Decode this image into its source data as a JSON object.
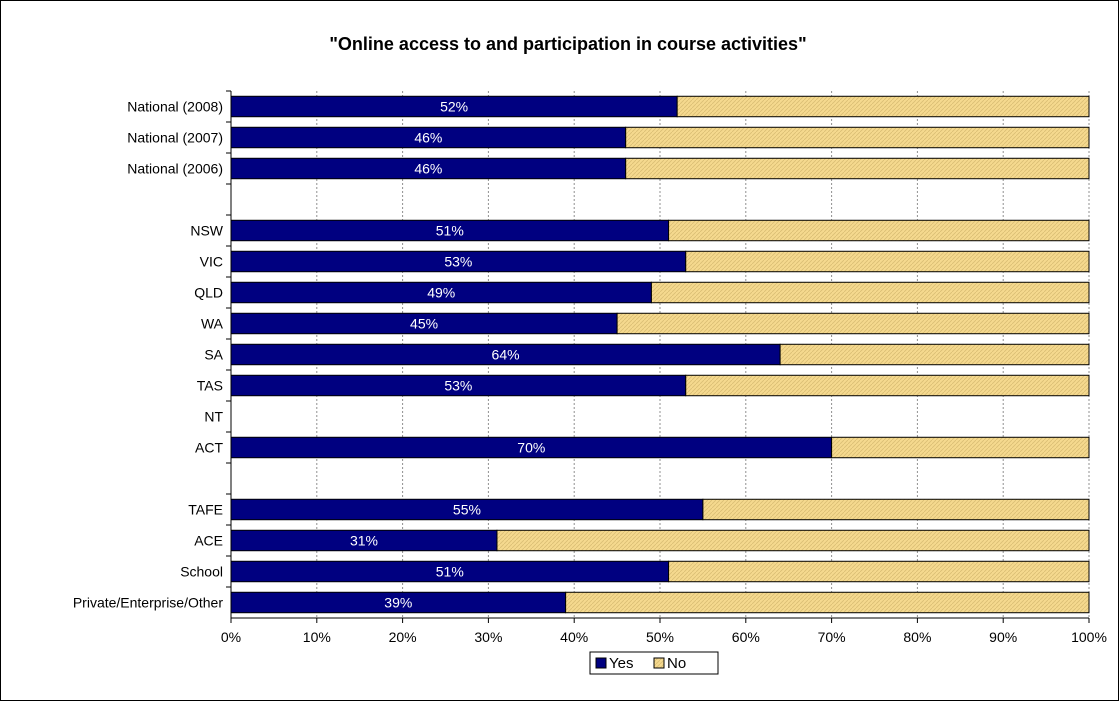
{
  "chart_data": {
    "type": "bar",
    "orientation": "horizontal",
    "stacked": true,
    "title": "\"Online access to and participation in course activities\"",
    "xlabel": "",
    "ylabel": "",
    "xlim": [
      0,
      100
    ],
    "x_ticks": [
      "0%",
      "10%",
      "20%",
      "30%",
      "40%",
      "50%",
      "60%",
      "70%",
      "80%",
      "90%",
      "100%"
    ],
    "grid": "vertical dashed",
    "legend_position": "bottom",
    "categories": [
      "National (2008)",
      "National (2007)",
      "National (2006)",
      "",
      "NSW",
      "VIC",
      "QLD",
      "WA",
      "SA",
      "TAS",
      "NT",
      "ACT",
      "",
      "TAFE",
      "ACE",
      "School",
      "Private/Enterprise/Other"
    ],
    "series": [
      {
        "name": "Yes",
        "color": "#000080",
        "values": [
          52,
          46,
          46,
          null,
          51,
          53,
          49,
          45,
          64,
          53,
          null,
          70,
          null,
          55,
          31,
          51,
          39
        ],
        "labels": [
          "52%",
          "46%",
          "46%",
          "",
          "51%",
          "53%",
          "49%",
          "45%",
          "64%",
          "53%",
          "",
          "70%",
          "",
          "55%",
          "31%",
          "51%",
          "39%"
        ]
      },
      {
        "name": "No",
        "color": "#f5d98e",
        "values": [
          48,
          54,
          54,
          null,
          49,
          47,
          51,
          55,
          36,
          47,
          null,
          30,
          null,
          45,
          69,
          49,
          61
        ]
      }
    ]
  }
}
